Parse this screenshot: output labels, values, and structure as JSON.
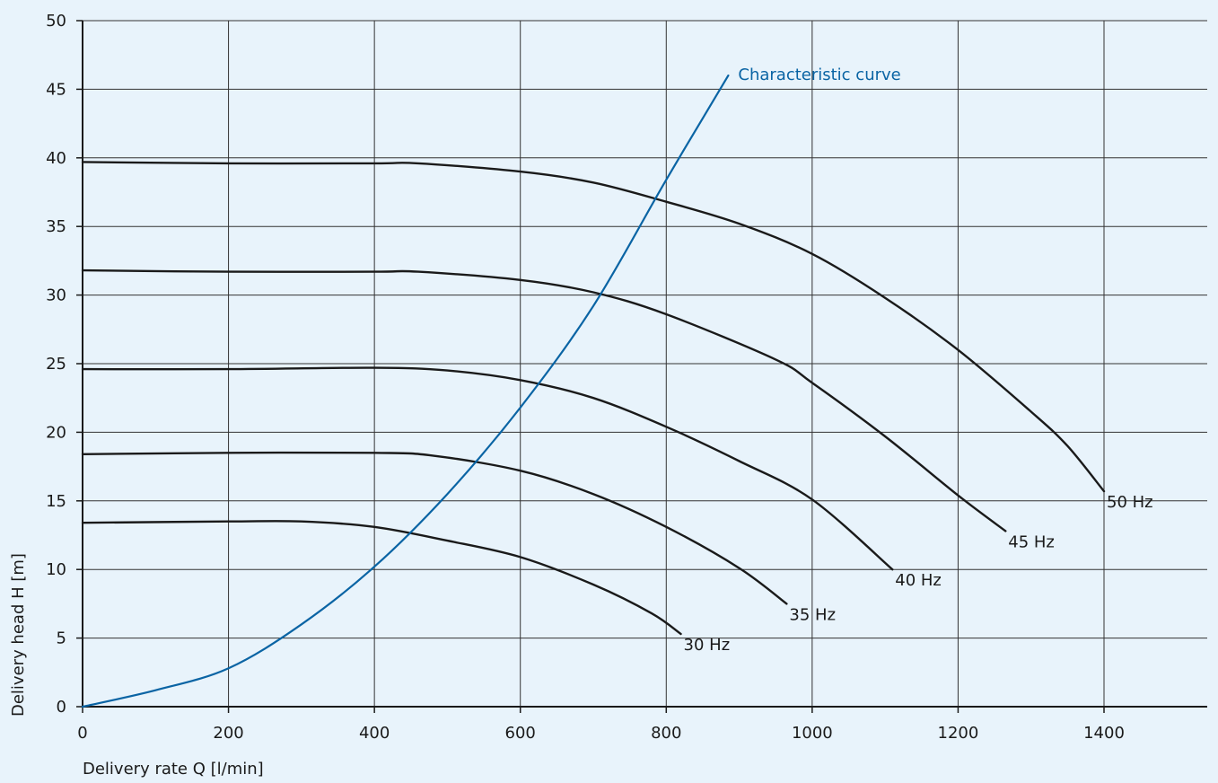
{
  "chart_data": {
    "type": "line",
    "title": "",
    "xlabel": "Delivery rate  Q [l/min]",
    "ylabel": "Delivery head  H [m]",
    "xlim": [
      0,
      1550
    ],
    "ylim": [
      0,
      50
    ],
    "grid": true,
    "x_ticks": [
      "0",
      "200",
      "400",
      "600",
      "800",
      "1000",
      "1200",
      "1400"
    ],
    "y_ticks": [
      "0",
      "5",
      "10",
      "15",
      "20",
      "25",
      "30",
      "35",
      "40",
      "45",
      "50"
    ],
    "colors": {
      "pump_curves": "#1a1a1a",
      "system_curve": "#0a64a4",
      "grid": "#333333",
      "background": "#e8f3fb"
    },
    "series": [
      {
        "name": "50 Hz",
        "x": [
          0,
          200,
          400,
          460,
          600,
          700,
          800,
          900,
          1000,
          1100,
          1200,
          1300,
          1350,
          1400
        ],
        "y": [
          39.7,
          39.6,
          39.6,
          39.6,
          39.0,
          38.2,
          36.8,
          35.2,
          33.0,
          29.8,
          26.0,
          21.5,
          19.0,
          15.7
        ]
      },
      {
        "name": "45 Hz",
        "x": [
          0,
          200,
          400,
          460,
          600,
          700,
          800,
          950,
          1000,
          1100,
          1200,
          1265
        ],
        "y": [
          31.8,
          31.7,
          31.7,
          31.7,
          31.1,
          30.2,
          28.6,
          25.3,
          23.6,
          19.7,
          15.4,
          12.8
        ]
      },
      {
        "name": "40 Hz",
        "x": [
          0,
          200,
          400,
          500,
          600,
          700,
          800,
          900,
          1000,
          1110
        ],
        "y": [
          24.6,
          24.6,
          24.7,
          24.5,
          23.8,
          22.5,
          20.4,
          17.9,
          15.1,
          10.0
        ]
      },
      {
        "name": "35 Hz",
        "x": [
          0,
          200,
          400,
          480,
          600,
          700,
          800,
          900,
          965
        ],
        "y": [
          18.4,
          18.5,
          18.5,
          18.3,
          17.2,
          15.5,
          13.1,
          10.1,
          7.5
        ]
      },
      {
        "name": "30 Hz",
        "x": [
          0,
          200,
          300,
          400,
          500,
          600,
          700,
          780,
          820
        ],
        "y": [
          13.4,
          13.5,
          13.5,
          13.1,
          12.1,
          10.9,
          8.9,
          6.8,
          5.3
        ]
      },
      {
        "name": "Characteristic curve",
        "x": [
          0,
          100,
          200,
          300,
          400,
          500,
          600,
          700,
          800,
          885
        ],
        "y": [
          0,
          1.2,
          2.8,
          6.0,
          10.2,
          15.5,
          21.8,
          29.2,
          38.4,
          46.0
        ]
      }
    ]
  }
}
